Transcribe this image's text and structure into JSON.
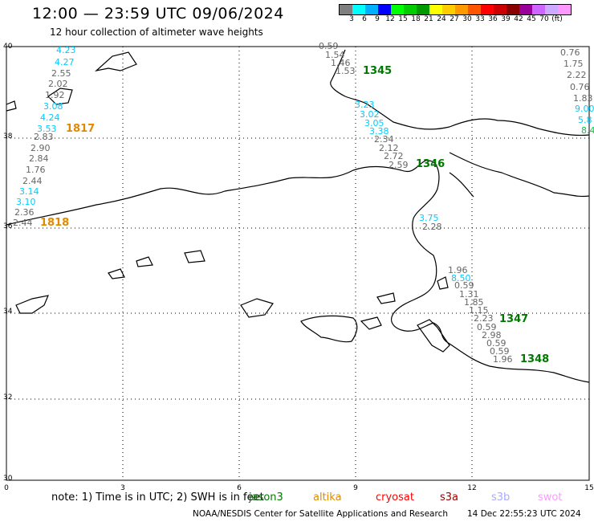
{
  "header": {
    "title": "12:00 — 23:59 UTC 09/06/2024",
    "subtitle": "12 hour collection of altimeter wave heights"
  },
  "legend": {
    "unit": "(ft)",
    "colors": [
      "#7f7f7f",
      "#00ffff",
      "#00b0ff",
      "#0000ff",
      "#00ff00",
      "#00cc00",
      "#009900",
      "#ffff00",
      "#ffcc00",
      "#ff9900",
      "#ff5500",
      "#ff0000",
      "#cc0000",
      "#880000",
      "#990099",
      "#cc66ff",
      "#ccaaff",
      "#ff99ff"
    ],
    "ticks": [
      "3",
      "6",
      "9",
      "12",
      "15",
      "18",
      "21",
      "24",
      "27",
      "30",
      "33",
      "36",
      "39",
      "42",
      "45",
      "70"
    ]
  },
  "axes": {
    "x_ticks": [
      "0",
      "3",
      "6",
      "9",
      "12",
      "15"
    ],
    "y_ticks": [
      "40",
      "38",
      "36",
      "34",
      "32",
      "30"
    ]
  },
  "wave_labels_left": [
    {
      "text": "4.23",
      "color": "cyan"
    },
    {
      "text": "4.27",
      "color": "cyan"
    },
    {
      "text": "2.55",
      "color": "gray"
    },
    {
      "text": "2.02",
      "color": "gray"
    },
    {
      "text": "1.92",
      "color": "gray"
    },
    {
      "text": "3.08",
      "color": "cyan"
    },
    {
      "text": "4.24",
      "color": "cyan"
    },
    {
      "text": "3.53",
      "color": "cyan"
    },
    {
      "text": "2.83",
      "color": "gray"
    },
    {
      "text": "2.90",
      "color": "gray"
    },
    {
      "text": "2.84",
      "color": "gray"
    },
    {
      "text": "1.76",
      "color": "gray"
    },
    {
      "text": "2.44",
      "color": "gray"
    },
    {
      "text": "3.14",
      "color": "cyan"
    },
    {
      "text": "3.10",
      "color": "cyan"
    },
    {
      "text": "2.36",
      "color": "gray"
    },
    {
      "text": "2.44",
      "color": "gray"
    }
  ],
  "wave_labels_center": [
    {
      "text": "0.59",
      "color": "gray"
    },
    {
      "text": "1.54",
      "color": "gray"
    },
    {
      "text": "1.46",
      "color": "gray"
    },
    {
      "text": "1.53",
      "color": "gray"
    },
    {
      "text": "3.23",
      "color": "cyan"
    },
    {
      "text": "3.02",
      "color": "cyan"
    },
    {
      "text": "3.05",
      "color": "cyan"
    },
    {
      "text": "3.38",
      "color": "cyan"
    },
    {
      "text": "2.34",
      "color": "gray"
    },
    {
      "text": "2.12",
      "color": "gray"
    },
    {
      "text": "2.72",
      "color": "gray"
    },
    {
      "text": "2.59",
      "color": "gray"
    },
    {
      "text": "3.75",
      "color": "cyan"
    },
    {
      "text": "2.28",
      "color": "gray"
    }
  ],
  "wave_labels_right": [
    {
      "text": "0.76",
      "color": "gray"
    },
    {
      "text": "1.75",
      "color": "gray"
    },
    {
      "text": "2.22",
      "color": "gray"
    },
    {
      "text": "0.76",
      "color": "gray"
    },
    {
      "text": "1.83",
      "color": "gray"
    },
    {
      "text": "9.00",
      "color": "cyan"
    },
    {
      "text": "5.8",
      "color": "cyan"
    },
    {
      "text": "8.4",
      "color": "green"
    }
  ],
  "wave_labels_lower": [
    {
      "text": "1.96",
      "color": "gray"
    },
    {
      "text": "8.50",
      "color": "cyan"
    },
    {
      "text": "0.59",
      "color": "gray"
    },
    {
      "text": "1.31",
      "color": "gray"
    },
    {
      "text": "1.85",
      "color": "gray"
    },
    {
      "text": "1.15",
      "color": "gray"
    },
    {
      "text": "2.23",
      "color": "gray"
    },
    {
      "text": "0.59",
      "color": "gray"
    },
    {
      "text": "2.98",
      "color": "gray"
    },
    {
      "text": "0.59",
      "color": "gray"
    },
    {
      "text": "0.59",
      "color": "gray"
    },
    {
      "text": "1.96",
      "color": "gray"
    }
  ],
  "pass_labels": [
    {
      "text": "1345",
      "color": "#007700"
    },
    {
      "text": "1346",
      "color": "#007700"
    },
    {
      "text": "1347",
      "color": "#007700"
    },
    {
      "text": "1348",
      "color": "#007700"
    },
    {
      "text": "1817",
      "color": "#e08a00"
    },
    {
      "text": "1818",
      "color": "#e08a00"
    }
  ],
  "footer": {
    "note": "note:  1) Time is in UTC; 2) SWH is in feet",
    "satellites": [
      {
        "text": "jason3",
        "color": "#007700"
      },
      {
        "text": "altika",
        "color": "#e08a00"
      },
      {
        "text": "cryosat",
        "color": "#ff0000"
      },
      {
        "text": "s3a",
        "color": "#990000"
      },
      {
        "text": "s3b",
        "color": "#aaaaff"
      },
      {
        "text": "swot",
        "color": "#ff99ff"
      }
    ],
    "credit": "NOAA/NESDIS Center for Satellite Applications and Research",
    "timestamp": "14 Dec 22:55:23 UTC 2024"
  }
}
